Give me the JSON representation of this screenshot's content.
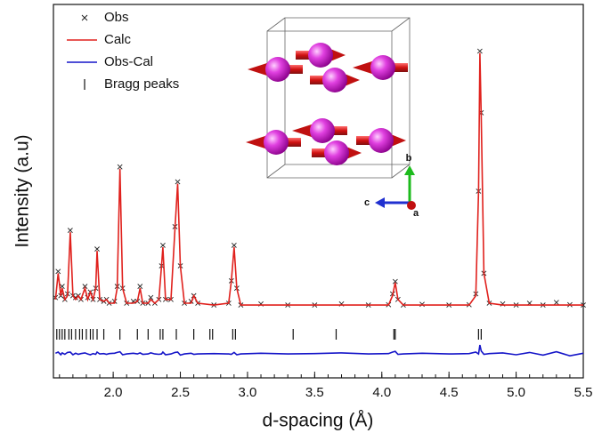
{
  "chart_data": {
    "type": "line",
    "xlabel": "d-spacing (Å)",
    "ylabel": "Intensity (a.u)",
    "xlim": [
      1.555,
      5.5
    ],
    "ylim": [
      0,
      100
    ],
    "xticks": [
      {
        "value": 2,
        "label": "2.0"
      },
      {
        "value": 2.5,
        "label": "2.5"
      },
      {
        "value": 3,
        "label": "3.0"
      },
      {
        "value": 3.5,
        "label": "3.5"
      },
      {
        "value": 4,
        "label": "4.0"
      },
      {
        "value": 4.5,
        "label": "4.5"
      },
      {
        "value": 5,
        "label": "5.0"
      },
      {
        "value": 5.5,
        "label": "5.5"
      }
    ],
    "legend": "top-left",
    "x": [
      1.57,
      1.59,
      1.61,
      1.62,
      1.64,
      1.66,
      1.68,
      1.7,
      1.72,
      1.74,
      1.76,
      1.79,
      1.81,
      1.83,
      1.85,
      1.87,
      1.88,
      1.9,
      1.93,
      1.95,
      1.97,
      2.01,
      2.03,
      2.05,
      2.07,
      2.1,
      2.15,
      2.18,
      2.2,
      2.22,
      2.26,
      2.28,
      2.31,
      2.34,
      2.36,
      2.37,
      2.39,
      2.43,
      2.46,
      2.48,
      2.5,
      2.53,
      2.58,
      2.6,
      2.63,
      2.75,
      2.86,
      2.88,
      2.9,
      2.92,
      2.95,
      3.1,
      3.3,
      3.5,
      3.7,
      3.9,
      4.05,
      4.08,
      4.1,
      4.12,
      4.16,
      4.3,
      4.5,
      4.65,
      4.7,
      4.72,
      4.73,
      4.74,
      4.76,
      4.8,
      4.9,
      5.0,
      5.1,
      5.2,
      5.3,
      5.4,
      5.5
    ],
    "series": [
      {
        "name": "Obs",
        "color": "#222222",
        "marker": "x",
        "values": [
          21.5,
          28.5,
          22,
          24.5,
          21,
          22.5,
          39.5,
          22,
          21.5,
          22,
          21,
          24.5,
          21.5,
          23,
          21,
          24,
          34.5,
          21,
          20.5,
          21,
          20,
          20.5,
          24.5,
          56.5,
          24,
          20,
          20.5,
          20.5,
          24.5,
          20,
          20,
          21.5,
          20,
          21,
          30,
          35.5,
          21,
          21,
          40.5,
          52.5,
          30,
          20,
          20.5,
          22,
          20,
          19.5,
          20,
          26,
          35.5,
          24,
          19.5,
          19.8,
          19.5,
          19.5,
          19.8,
          19.5,
          19.6,
          22.5,
          25.8,
          21,
          19.5,
          19.7,
          19.5,
          19.6,
          22.5,
          50,
          87.5,
          71,
          28,
          20,
          19.8,
          19.5,
          20,
          19.5,
          20.2,
          19.6,
          19.5
        ]
      },
      {
        "name": "Calc",
        "color": "#e0211d",
        "line": true,
        "values": [
          21,
          28,
          22,
          24,
          21,
          22,
          39,
          22,
          21,
          22,
          21,
          24,
          21,
          23,
          21,
          24,
          34,
          21,
          20.5,
          21,
          20,
          20,
          24,
          56,
          24,
          20,
          20,
          20.5,
          24,
          20,
          20,
          21,
          20,
          21,
          30,
          35,
          21,
          21,
          40,
          52,
          30,
          20,
          20,
          22,
          20,
          19.5,
          20,
          26,
          35,
          24,
          19.5,
          19.5,
          19.5,
          19.5,
          19.5,
          19.5,
          19.5,
          22,
          25.5,
          21,
          19.5,
          19.5,
          19.5,
          19.5,
          22,
          50,
          87,
          70,
          28,
          20,
          19.5,
          19.5,
          19.5,
          19.5,
          19.5,
          19.5,
          19.5
        ]
      },
      {
        "name": "Obs-Cal",
        "color": "#1515c8",
        "line": true,
        "values": [
          6.6,
          6.9,
          6.2,
          6.7,
          6.3,
          6.8,
          6.9,
          6.2,
          6.6,
          6.3,
          6.5,
          6.7,
          6.4,
          6.2,
          6.5,
          6.3,
          6.9,
          6.4,
          6.5,
          6.3,
          6.5,
          6.6,
          6.8,
          7,
          6.2,
          6.4,
          6.6,
          6.4,
          6.7,
          6.3,
          6.4,
          6.7,
          6.4,
          6.3,
          6.4,
          6.9,
          6.2,
          6.4,
          6.8,
          6.9,
          6.1,
          6.4,
          6.6,
          6.3,
          6.4,
          6.5,
          6.4,
          6.3,
          6.8,
          6.2,
          6.4,
          6.6,
          6.4,
          6.5,
          6.7,
          6.4,
          6.5,
          6.9,
          7.1,
          6.3,
          6.4,
          6.6,
          6.4,
          6.5,
          6.9,
          6.4,
          8.8,
          7.2,
          6.3,
          6.5,
          6.7,
          6.2,
          6.8,
          6.1,
          7,
          5.9,
          6.6
        ]
      }
    ],
    "bragg_peaks": {
      "name": "Bragg peaks",
      "color": "#111111",
      "x": [
        1.58,
        1.6,
        1.62,
        1.64,
        1.67,
        1.69,
        1.72,
        1.75,
        1.77,
        1.8,
        1.83,
        1.85,
        1.88,
        1.93,
        2.05,
        2.18,
        2.26,
        2.35,
        2.37,
        2.47,
        2.6,
        2.72,
        2.74,
        2.89,
        2.91,
        3.34,
        3.66,
        4.09,
        4.1,
        4.72,
        4.74
      ]
    },
    "inset": {
      "axis_labels": [
        "b",
        "c",
        "a"
      ]
    }
  }
}
